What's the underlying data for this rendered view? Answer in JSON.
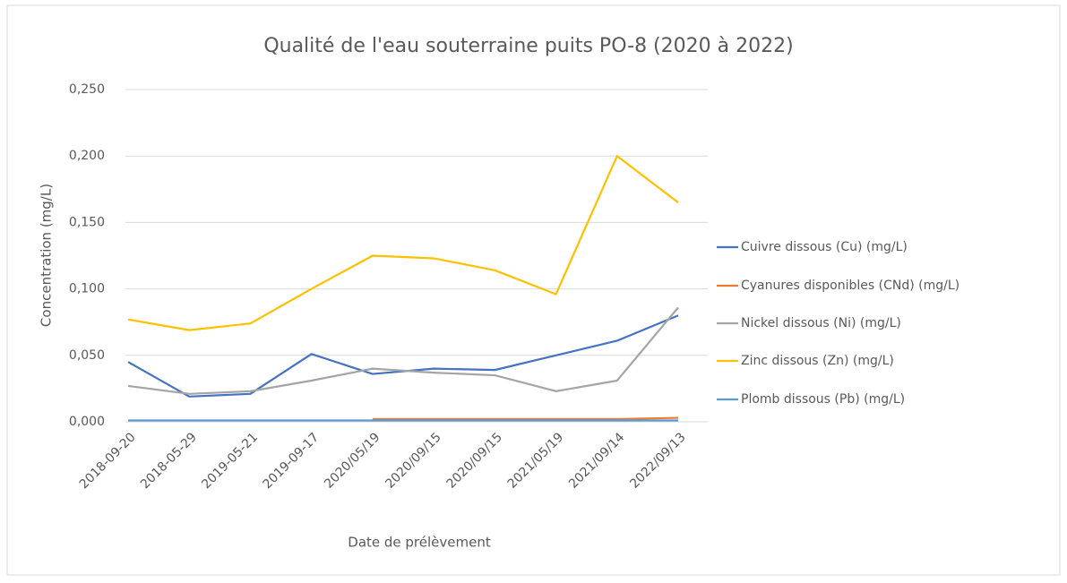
{
  "chart_data": {
    "type": "line",
    "title": "Qualité de l'eau souterraine puits PO-8 (2020 à 2022)",
    "x_label": "Date de prélèvement",
    "y_label": "Concentration (mg/L)",
    "categories": [
      "2018-09-20",
      "2018-05-29",
      "2019-05-21",
      "2019-09-17",
      "2020/05/19",
      "2020/09/15",
      "2020/09/15",
      "2021/05/19",
      "2021/09/14",
      "2022/09/13"
    ],
    "series": [
      {
        "name": "Cuivre dissous (Cu) (mg/L)",
        "color": "#4472c4",
        "values": [
          0.045,
          0.019,
          0.021,
          0.051,
          0.036,
          0.04,
          0.039,
          0.05,
          0.061,
          0.08
        ]
      },
      {
        "name": "Cyanures disponibles (CNd) (mg/L)",
        "color": "#ed7d31",
        "values": [
          null,
          null,
          null,
          null,
          0.002,
          0.002,
          0.002,
          0.002,
          0.002,
          0.003
        ]
      },
      {
        "name": "Nickel dissous (Ni) (mg/L)",
        "color": "#a5a5a5",
        "values": [
          0.027,
          0.021,
          0.023,
          0.031,
          0.04,
          0.037,
          0.035,
          0.023,
          0.031,
          0.086
        ]
      },
      {
        "name": "Zinc dissous (Zn) (mg/L)",
        "color": "#ffc000",
        "values": [
          0.077,
          0.069,
          0.074,
          0.1,
          0.125,
          0.123,
          0.114,
          0.096,
          0.2,
          0.165
        ]
      },
      {
        "name": "Plomb dissous (Pb) (mg/L)",
        "color": "#5b9bd5",
        "values": [
          0.001,
          0.001,
          0.001,
          0.001,
          0.001,
          0.001,
          0.001,
          0.001,
          0.001,
          0.001
        ]
      }
    ],
    "ylim": [
      0,
      0.25
    ],
    "yticks": [
      {
        "value": 0,
        "label": "0,000"
      },
      {
        "value": 0.05,
        "label": "0,050"
      },
      {
        "value": 0.1,
        "label": "0,100"
      },
      {
        "value": 0.15,
        "label": "0,150"
      },
      {
        "value": 0.2,
        "label": "0,200"
      },
      {
        "value": 0.25,
        "label": "0,250"
      }
    ],
    "grid": true,
    "legend": "right"
  }
}
